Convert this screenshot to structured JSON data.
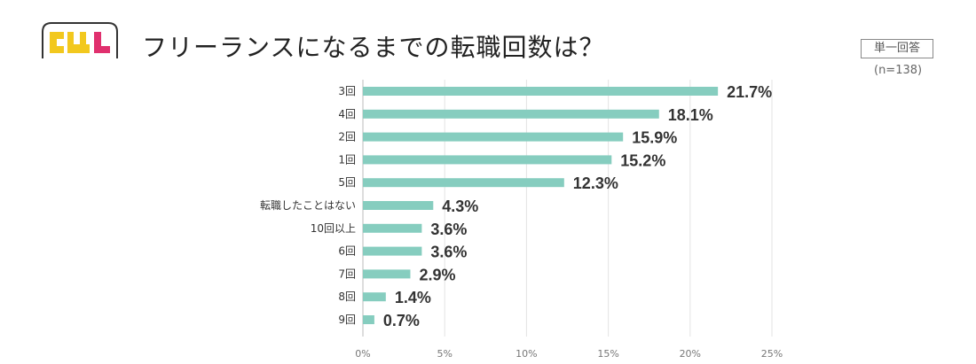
{
  "header": {
    "logo_text": "CWL",
    "title": "フリーランスになるまでの転職回数は？",
    "badge": "単一回答",
    "sample": "(n=138)"
  },
  "colors": {
    "bar": "#86cdbf",
    "logo_yellow": "#f2c81e",
    "logo_pink": "#e0306e"
  },
  "chart_data": {
    "type": "bar",
    "orientation": "horizontal",
    "categories": [
      "3回",
      "4回",
      "2回",
      "1回",
      "5回",
      "転職したことはない",
      "10回以上",
      "6回",
      "7回",
      "8回",
      "9回"
    ],
    "values": [
      21.7,
      18.1,
      15.9,
      15.2,
      12.3,
      4.3,
      3.6,
      3.6,
      2.9,
      1.4,
      0.7
    ],
    "value_labels": [
      "21.7%",
      "18.1%",
      "15.9%",
      "15.2%",
      "12.3%",
      "4.3%",
      "3.6%",
      "3.6%",
      "2.9%",
      "1.4%",
      "0.7%"
    ],
    "x_ticks": [
      "0%",
      "5%",
      "10%",
      "15%",
      "20%",
      "25%"
    ],
    "x_tick_values": [
      0,
      5,
      10,
      15,
      20,
      25
    ],
    "xlim": [
      0,
      25
    ],
    "grid": true,
    "legend": false
  }
}
